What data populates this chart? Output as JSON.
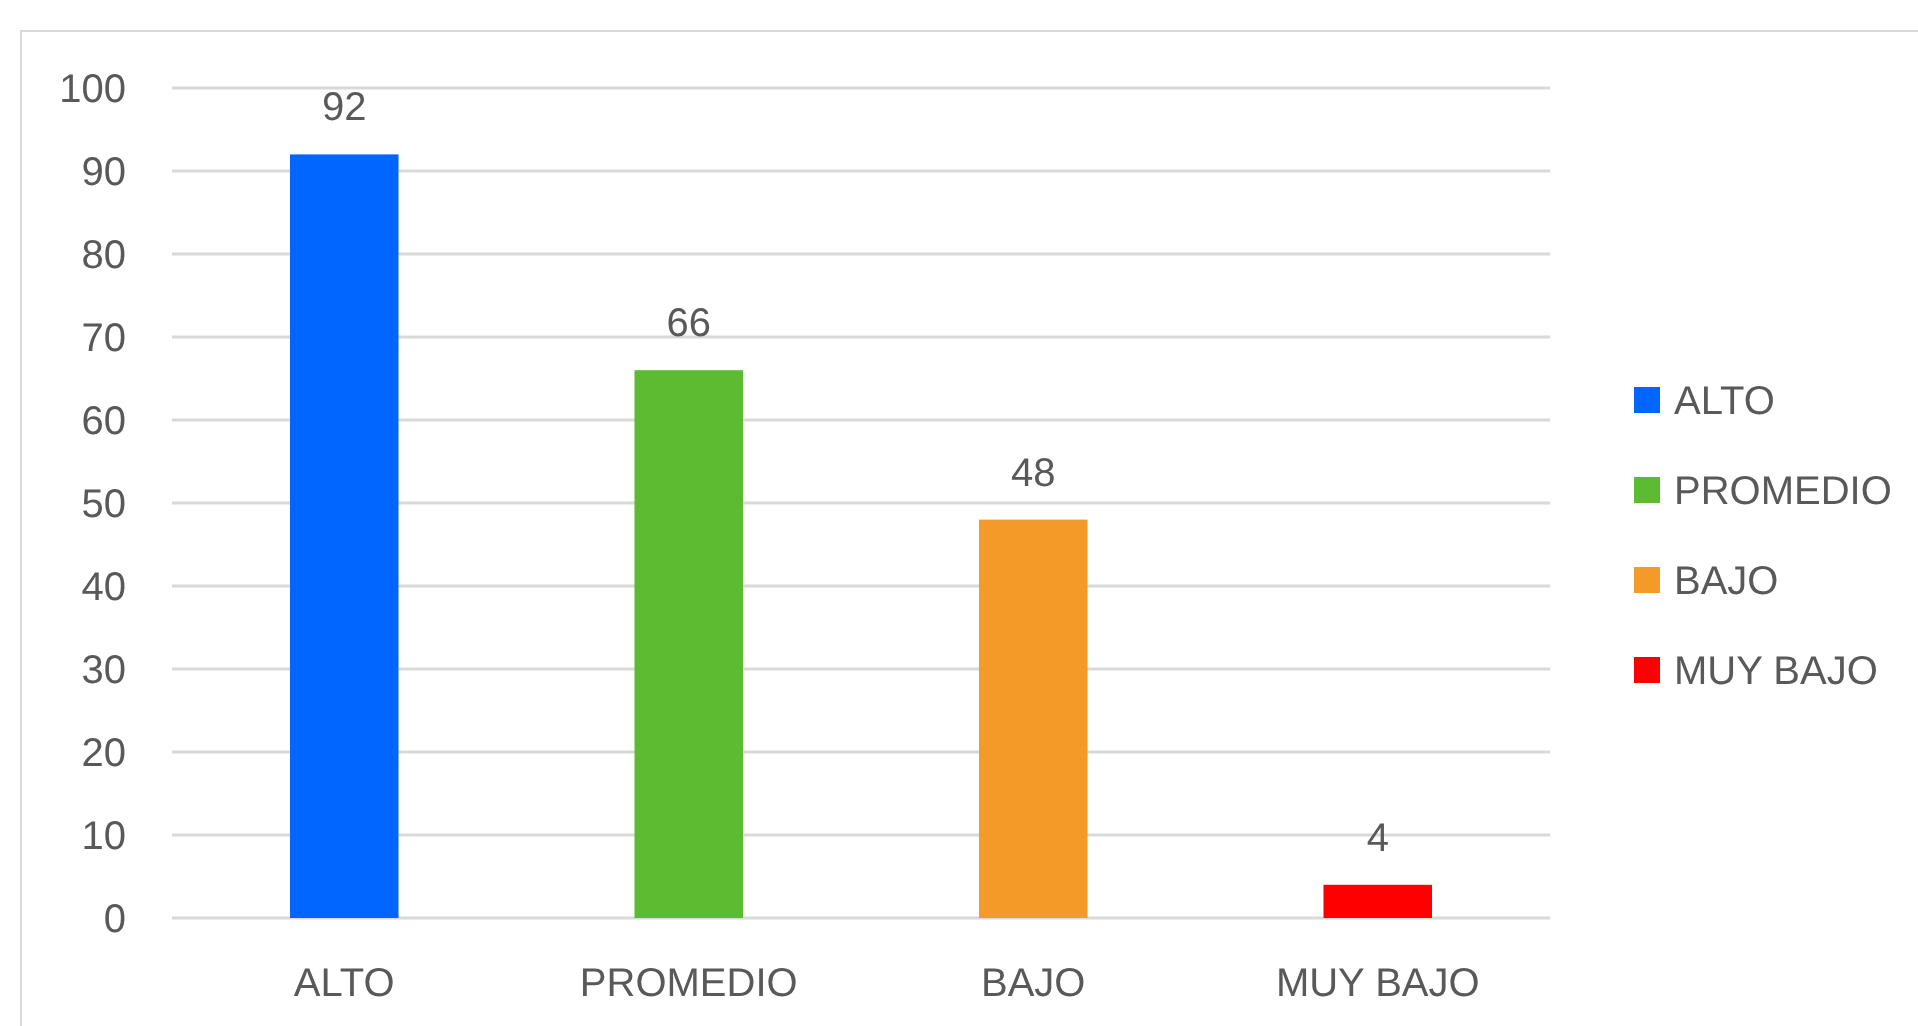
{
  "chart_data": {
    "type": "bar",
    "stacked": true,
    "categories": [
      "ALTO",
      "PROMEDIO",
      "BAJO",
      "MUY BAJO"
    ],
    "series": [
      {
        "name": "ALTO",
        "color": "#0066ff",
        "values": [
          92,
          null,
          null,
          null
        ]
      },
      {
        "name": "PROMEDIO",
        "color": "#5dbb31",
        "values": [
          null,
          66,
          null,
          null
        ]
      },
      {
        "name": "BAJO",
        "color": "#f39a28",
        "values": [
          null,
          null,
          48,
          null
        ]
      },
      {
        "name": "MUY BAJO",
        "color": "#ff0000",
        "values": [
          null,
          null,
          null,
          4
        ]
      }
    ],
    "ylim": [
      0,
      100
    ],
    "yticks": [
      0,
      10,
      20,
      30,
      40,
      50,
      60,
      70,
      80,
      90,
      100
    ],
    "grid": "y",
    "data_labels": true,
    "legend": "right"
  }
}
